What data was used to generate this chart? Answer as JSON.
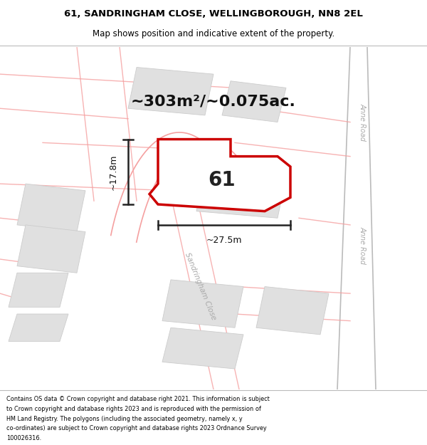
{
  "title_line1": "61, SANDRINGHAM CLOSE, WELLINGBOROUGH, NN8 2EL",
  "title_line2": "Map shows position and indicative extent of the property.",
  "area_text": "~303m²/~0.075ac.",
  "label_61": "61",
  "dim_height": "~17.8m",
  "dim_width": "~27.5m",
  "road_label": "Sandringham Close",
  "road_label2": "Anne Road",
  "footer_text": "Contains OS data © Crown copyright and database right 2021. This information is subject to Crown copyright and database rights 2023 and is reproduced with the permission of HM Land Registry. The polygons (including the associated geometry, namely x, y co-ordinates) are subject to Crown copyright and database rights 2023 Ordnance Survey 100026316.",
  "bg_color": "#ffffff",
  "map_bg": "#ffffff",
  "plot_border": "#cc0000",
  "road_line_color": "#f5a0a0",
  "road_fill_color": "#f5e8e8",
  "building_color": "#e0e0e0",
  "building_edge": "#cccccc",
  "dim_color": "#222222",
  "anne_road_line": "#cccccc",
  "title_fontsize": 9.5,
  "subtitle_fontsize": 8.5,
  "area_fontsize": 16,
  "label_fontsize": 20
}
